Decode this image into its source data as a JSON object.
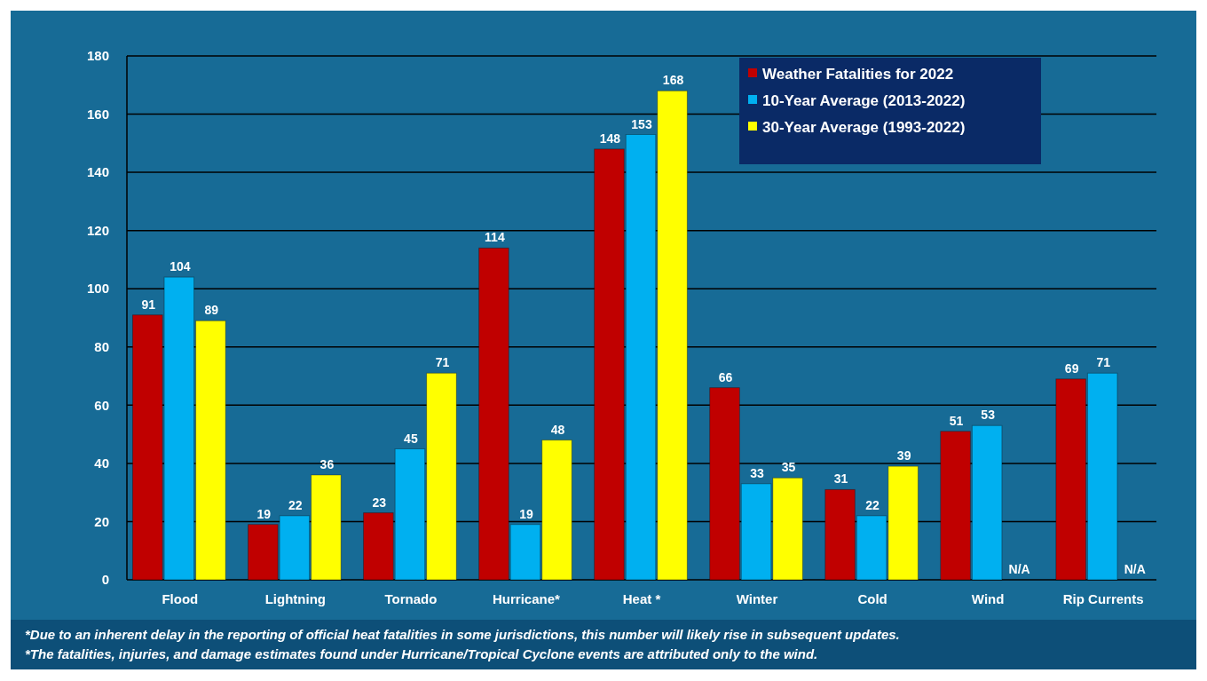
{
  "chart_data": {
    "type": "bar",
    "categories": [
      "Flood",
      "Lightning",
      "Tornado",
      "Hurricane*",
      "Heat *",
      "Winter",
      "Cold",
      "Wind",
      "Rip Currents"
    ],
    "series": [
      {
        "name": "Weather Fatalities for 2022",
        "color": "#c00000",
        "values": [
          91,
          19,
          23,
          114,
          148,
          66,
          31,
          51,
          69
        ],
        "value_labels": [
          "91",
          "19",
          "23",
          "114",
          "148",
          "66",
          "31",
          "51",
          "69"
        ]
      },
      {
        "name": "10-Year Average (2013-2022)",
        "color": "#00b0f0",
        "values": [
          104,
          22,
          45,
          19,
          153,
          33,
          22,
          53,
          71
        ],
        "value_labels": [
          "104",
          "22",
          "45",
          "19",
          "153",
          "33",
          "22",
          "53",
          "71"
        ]
      },
      {
        "name": "30-Year Average (1993-2022)",
        "color": "#ffff00",
        "values": [
          89,
          36,
          71,
          48,
          168,
          35,
          39,
          null,
          null
        ],
        "value_labels": [
          "89",
          "36",
          "71",
          "48",
          "168",
          "35",
          "39",
          "N/A",
          "N/A"
        ]
      }
    ],
    "ylim": [
      0,
      180
    ],
    "yticks": [
      0,
      20,
      40,
      60,
      80,
      100,
      120,
      140,
      160,
      180
    ],
    "grid": "y",
    "legend": "top right",
    "annotations": [
      "*Due to an inherent delay in the reporting of official heat fatalities in some jurisdictions, this number will likely rise in subsequent updates.",
      "*The fatalities, injuries, and damage estimates found under Hurricane/Tropical Cyclone events are attributed only to the wind."
    ]
  }
}
